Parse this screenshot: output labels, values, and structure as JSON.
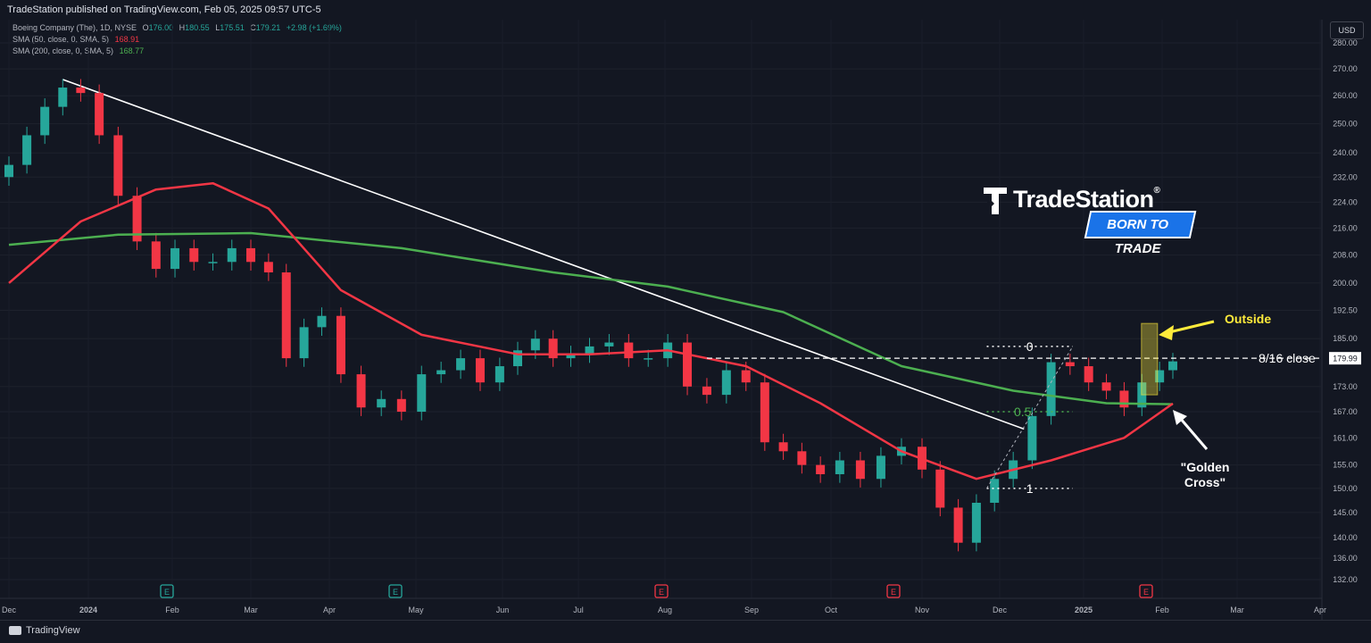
{
  "header": {
    "published": "TradeStation published on TradingView.com, Feb 05, 2025 09:57 UTC-5"
  },
  "legend": {
    "symbol": "Boeing Company (The), 1D, NYSE",
    "o_label": "O",
    "o": "176.00",
    "h_label": "H",
    "h": "180.55",
    "l_label": "L",
    "l": "175.51",
    "c_label": "C",
    "c": "179.21",
    "change": "+2.98 (+1.69%)",
    "sma50_label": "SMA (50, close, 0, SMA, 5)",
    "sma50_value": "168.91",
    "sma200_label": "SMA (200, close, 0, SMA, 5)",
    "sma200_value": "168.77"
  },
  "currency": "USD",
  "footer": {
    "brand": "TradingView"
  },
  "branding": {
    "name": "TradeStation",
    "reg": "®",
    "tagline": "BORN TO TRADE"
  },
  "colors": {
    "background": "#131722",
    "up": "#26a69a",
    "down": "#f23645",
    "sma50": "#f23645",
    "sma200": "#4caf50",
    "annotation": "#ffeb3b",
    "trendline": "#ffffff"
  },
  "chart_data": {
    "type": "candlestick",
    "symbol": "Boeing Company (The), 1D, NYSE",
    "x_ticks": [
      "Dec",
      "2024",
      "Feb",
      "Mar",
      "Apr",
      "May",
      "Jun",
      "Jul",
      "Aug",
      "Sep",
      "Oct",
      "Nov",
      "Dec",
      "2025",
      "Feb",
      "Mar",
      "Apr"
    ],
    "y_ticks": [
      "280.00",
      "270.00",
      "260.00",
      "250.00",
      "240.00",
      "232.00",
      "224.00",
      "216.00",
      "208.00",
      "200.00",
      "192.50",
      "185.00",
      "179.99",
      "173.00",
      "167.00",
      "161.00",
      "155.00",
      "150.00",
      "145.00",
      "140.00",
      "136.00",
      "132.00"
    ],
    "y_range": [
      132,
      280
    ],
    "y_scale": "log",
    "last_price": "179.99",
    "close_series": [
      {
        "date": "2023-12-01",
        "close": 236
      },
      {
        "date": "2023-12-08",
        "close": 246
      },
      {
        "date": "2023-12-15",
        "close": 256
      },
      {
        "date": "2023-12-22",
        "close": 263
      },
      {
        "date": "2023-12-29",
        "close": 261
      },
      {
        "date": "2024-01-05",
        "close": 246
      },
      {
        "date": "2024-01-12",
        "close": 226
      },
      {
        "date": "2024-01-19",
        "close": 212
      },
      {
        "date": "2024-01-26",
        "close": 204
      },
      {
        "date": "2024-02-02",
        "close": 210
      },
      {
        "date": "2024-02-09",
        "close": 206
      },
      {
        "date": "2024-02-16",
        "close": 206
      },
      {
        "date": "2024-02-23",
        "close": 210
      },
      {
        "date": "2024-03-01",
        "close": 206
      },
      {
        "date": "2024-03-08",
        "close": 203
      },
      {
        "date": "2024-03-15",
        "close": 180
      },
      {
        "date": "2024-03-22",
        "close": 188
      },
      {
        "date": "2024-03-29",
        "close": 191
      },
      {
        "date": "2024-04-05",
        "close": 176
      },
      {
        "date": "2024-04-12",
        "close": 168
      },
      {
        "date": "2024-04-19",
        "close": 170
      },
      {
        "date": "2024-04-26",
        "close": 167
      },
      {
        "date": "2024-05-03",
        "close": 176
      },
      {
        "date": "2024-05-10",
        "close": 177
      },
      {
        "date": "2024-05-17",
        "close": 180
      },
      {
        "date": "2024-05-24",
        "close": 174
      },
      {
        "date": "2024-05-31",
        "close": 178
      },
      {
        "date": "2024-06-07",
        "close": 182
      },
      {
        "date": "2024-06-14",
        "close": 185
      },
      {
        "date": "2024-06-21",
        "close": 180
      },
      {
        "date": "2024-06-28",
        "close": 181
      },
      {
        "date": "2024-07-05",
        "close": 183
      },
      {
        "date": "2024-07-12",
        "close": 184
      },
      {
        "date": "2024-07-19",
        "close": 180
      },
      {
        "date": "2024-07-26",
        "close": 180
      },
      {
        "date": "2024-08-02",
        "close": 184
      },
      {
        "date": "2024-08-09",
        "close": 173
      },
      {
        "date": "2024-08-16",
        "close": 171
      },
      {
        "date": "2024-08-23",
        "close": 177
      },
      {
        "date": "2024-08-30",
        "close": 174
      },
      {
        "date": "2024-09-06",
        "close": 160
      },
      {
        "date": "2024-09-13",
        "close": 158
      },
      {
        "date": "2024-09-20",
        "close": 155
      },
      {
        "date": "2024-09-27",
        "close": 153
      },
      {
        "date": "2024-10-04",
        "close": 156
      },
      {
        "date": "2024-10-11",
        "close": 152
      },
      {
        "date": "2024-10-18",
        "close": 157
      },
      {
        "date": "2024-10-25",
        "close": 159
      },
      {
        "date": "2024-11-01",
        "close": 154
      },
      {
        "date": "2024-11-08",
        "close": 146
      },
      {
        "date": "2024-11-15",
        "close": 139
      },
      {
        "date": "2024-11-22",
        "close": 147
      },
      {
        "date": "2024-11-29",
        "close": 152
      },
      {
        "date": "2024-12-06",
        "close": 156
      },
      {
        "date": "2024-12-13",
        "close": 166
      },
      {
        "date": "2024-12-20",
        "close": 179
      },
      {
        "date": "2024-12-27",
        "close": 178
      },
      {
        "date": "2025-01-03",
        "close": 174
      },
      {
        "date": "2025-01-10",
        "close": 172
      },
      {
        "date": "2025-01-17",
        "close": 168
      },
      {
        "date": "2025-01-24",
        "close": 174
      },
      {
        "date": "2025-01-31",
        "close": 177
      },
      {
        "date": "2025-02-05",
        "close": 179.21
      }
    ],
    "sma50": [
      {
        "date": "2023-12-01",
        "value": 200
      },
      {
        "date": "2023-12-29",
        "value": 218
      },
      {
        "date": "2024-01-26",
        "value": 228
      },
      {
        "date": "2024-02-16",
        "value": 230
      },
      {
        "date": "2024-03-08",
        "value": 222
      },
      {
        "date": "2024-04-05",
        "value": 198
      },
      {
        "date": "2024-05-03",
        "value": 186
      },
      {
        "date": "2024-06-07",
        "value": 181
      },
      {
        "date": "2024-07-05",
        "value": 181
      },
      {
        "date": "2024-08-02",
        "value": 182
      },
      {
        "date": "2024-08-30",
        "value": 178
      },
      {
        "date": "2024-09-27",
        "value": 169
      },
      {
        "date": "2024-10-25",
        "value": 158
      },
      {
        "date": "2024-11-22",
        "value": 152
      },
      {
        "date": "2024-12-20",
        "value": 156
      },
      {
        "date": "2025-01-17",
        "value": 161
      },
      {
        "date": "2025-02-05",
        "value": 168.91
      }
    ],
    "sma200": [
      {
        "date": "2023-12-01",
        "value": 211
      },
      {
        "date": "2024-01-12",
        "value": 214
      },
      {
        "date": "2024-03-01",
        "value": 214.5
      },
      {
        "date": "2024-04-26",
        "value": 210
      },
      {
        "date": "2024-06-21",
        "value": 203
      },
      {
        "date": "2024-08-02",
        "value": 199
      },
      {
        "date": "2024-09-13",
        "value": 192
      },
      {
        "date": "2024-10-25",
        "value": 178
      },
      {
        "date": "2024-12-06",
        "value": 172
      },
      {
        "date": "2025-01-10",
        "value": 169
      },
      {
        "date": "2025-02-05",
        "value": 168.77
      }
    ],
    "annotations": [
      {
        "text": "Outside",
        "color": "#ffeb3b"
      },
      {
        "text": "8/16 close",
        "level": 180
      },
      {
        "text": "\"Golden\nCross\""
      },
      {
        "text": "0",
        "level": 183
      },
      {
        "text": "0.5",
        "level": 167
      },
      {
        "text": "1",
        "level": 150
      }
    ],
    "earnings_markers": [
      "E",
      "E",
      "E",
      "E",
      "E",
      "E"
    ]
  }
}
